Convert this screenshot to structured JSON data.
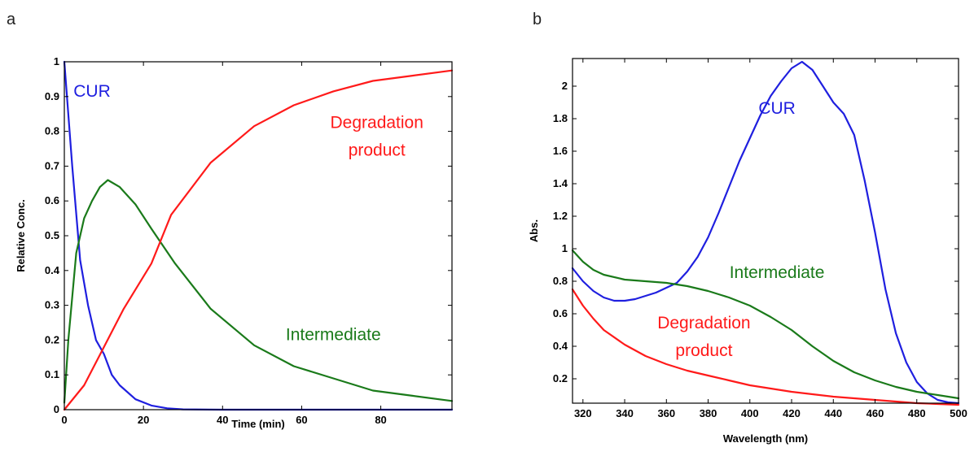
{
  "chart_data": [
    {
      "panel_label": "a",
      "type": "line",
      "xlabel": "Time (min)",
      "ylabel": "Relative Conc.",
      "xlim": [
        0,
        98
      ],
      "ylim": [
        0,
        1
      ],
      "xticks": [
        0,
        20,
        40,
        60,
        80
      ],
      "yticks": [
        0,
        0.1,
        0.2,
        0.3,
        0.4,
        0.5,
        0.6,
        0.7,
        0.8,
        0.9,
        1
      ],
      "grid": false,
      "series": [
        {
          "name": "CUR",
          "color": "#1f1fdf",
          "label_at": [
            7,
            0.9
          ],
          "points": [
            [
              0,
              1
            ],
            [
              2,
              0.7
            ],
            [
              4,
              0.43
            ],
            [
              6,
              0.3
            ],
            [
              8,
              0.2
            ],
            [
              10,
              0.16
            ],
            [
              12,
              0.1
            ],
            [
              14,
              0.07
            ],
            [
              18,
              0.03
            ],
            [
              22,
              0.012
            ],
            [
              26,
              0.004
            ],
            [
              30,
              0.001
            ],
            [
              40,
              0
            ],
            [
              98,
              0
            ]
          ]
        },
        {
          "name": "Intermediate",
          "color": "#1a7a1a",
          "label_at": [
            68,
            0.2
          ],
          "points": [
            [
              0,
              0.02
            ],
            [
              1,
              0.2
            ],
            [
              3,
              0.45
            ],
            [
              5,
              0.55
            ],
            [
              7,
              0.6
            ],
            [
              9,
              0.64
            ],
            [
              11,
              0.66
            ],
            [
              14,
              0.64
            ],
            [
              18,
              0.59
            ],
            [
              22,
              0.52
            ],
            [
              28,
              0.42
            ],
            [
              37,
              0.29
            ],
            [
              48,
              0.185
            ],
            [
              58,
              0.125
            ],
            [
              68,
              0.09
            ],
            [
              78,
              0.055
            ],
            [
              88,
              0.04
            ],
            [
              98,
              0.025
            ]
          ]
        },
        {
          "name": "Degradation product",
          "label_lines": [
            "Degradation",
            "product"
          ],
          "color": "#ff1a1a",
          "label_at": [
            79,
            0.81
          ],
          "points": [
            [
              0,
              0
            ],
            [
              5,
              0.07
            ],
            [
              10,
              0.18
            ],
            [
              15,
              0.29
            ],
            [
              22,
              0.42
            ],
            [
              27,
              0.56
            ],
            [
              37,
              0.71
            ],
            [
              48,
              0.815
            ],
            [
              58,
              0.875
            ],
            [
              68,
              0.915
            ],
            [
              78,
              0.945
            ],
            [
              88,
              0.96
            ],
            [
              98,
              0.975
            ]
          ]
        }
      ]
    },
    {
      "panel_label": "b",
      "type": "line",
      "xlabel": "Wavelength (nm)",
      "ylabel": "Abs.",
      "xlim": [
        315,
        500
      ],
      "ylim": [
        0.05,
        2.17
      ],
      "xticks": [
        320,
        340,
        360,
        380,
        400,
        420,
        440,
        460,
        480,
        500
      ],
      "yticks": [
        0.2,
        0.4,
        0.6,
        0.8,
        1,
        1.2,
        1.4,
        1.6,
        1.8,
        2
      ],
      "grid": false,
      "series": [
        {
          "name": "CUR",
          "color": "#1f1fdf",
          "label_at": [
            413,
            1.83
          ],
          "points": [
            [
              315,
              0.88
            ],
            [
              320,
              0.8
            ],
            [
              325,
              0.74
            ],
            [
              330,
              0.7
            ],
            [
              335,
              0.68
            ],
            [
              340,
              0.68
            ],
            [
              345,
              0.69
            ],
            [
              350,
              0.71
            ],
            [
              355,
              0.73
            ],
            [
              360,
              0.76
            ],
            [
              365,
              0.79
            ],
            [
              370,
              0.86
            ],
            [
              375,
              0.95
            ],
            [
              380,
              1.07
            ],
            [
              385,
              1.22
            ],
            [
              390,
              1.38
            ],
            [
              395,
              1.54
            ],
            [
              400,
              1.68
            ],
            [
              405,
              1.82
            ],
            [
              410,
              1.94
            ],
            [
              415,
              2.03
            ],
            [
              420,
              2.11
            ],
            [
              425,
              2.15
            ],
            [
              430,
              2.1
            ],
            [
              435,
              2.0
            ],
            [
              440,
              1.9
            ],
            [
              445,
              1.83
            ],
            [
              450,
              1.7
            ],
            [
              455,
              1.42
            ],
            [
              460,
              1.1
            ],
            [
              465,
              0.75
            ],
            [
              470,
              0.48
            ],
            [
              475,
              0.3
            ],
            [
              480,
              0.18
            ],
            [
              485,
              0.11
            ],
            [
              490,
              0.07
            ],
            [
              495,
              0.055
            ],
            [
              500,
              0.05
            ]
          ]
        },
        {
          "name": "Intermediate",
          "color": "#1a7a1a",
          "label_at": [
            413,
            0.82
          ],
          "points": [
            [
              315,
              0.99
            ],
            [
              320,
              0.92
            ],
            [
              325,
              0.87
            ],
            [
              330,
              0.84
            ],
            [
              340,
              0.81
            ],
            [
              350,
              0.8
            ],
            [
              360,
              0.79
            ],
            [
              370,
              0.77
            ],
            [
              380,
              0.74
            ],
            [
              390,
              0.7
            ],
            [
              400,
              0.65
            ],
            [
              410,
              0.58
            ],
            [
              420,
              0.5
            ],
            [
              430,
              0.4
            ],
            [
              440,
              0.31
            ],
            [
              450,
              0.24
            ],
            [
              460,
              0.19
            ],
            [
              470,
              0.15
            ],
            [
              480,
              0.12
            ],
            [
              490,
              0.1
            ],
            [
              500,
              0.08
            ]
          ]
        },
        {
          "name": "Degradation product",
          "label_lines": [
            "Degradation",
            "product"
          ],
          "color": "#ff1a1a",
          "label_at": [
            378,
            0.51
          ],
          "points": [
            [
              315,
              0.75
            ],
            [
              320,
              0.65
            ],
            [
              325,
              0.57
            ],
            [
              330,
              0.5
            ],
            [
              340,
              0.41
            ],
            [
              350,
              0.34
            ],
            [
              360,
              0.29
            ],
            [
              370,
              0.25
            ],
            [
              380,
              0.22
            ],
            [
              390,
              0.19
            ],
            [
              400,
              0.16
            ],
            [
              410,
              0.14
            ],
            [
              420,
              0.12
            ],
            [
              430,
              0.105
            ],
            [
              440,
              0.09
            ],
            [
              450,
              0.08
            ],
            [
              460,
              0.07
            ],
            [
              470,
              0.06
            ],
            [
              480,
              0.05
            ],
            [
              490,
              0.045
            ],
            [
              500,
              0.04
            ]
          ]
        }
      ]
    }
  ]
}
